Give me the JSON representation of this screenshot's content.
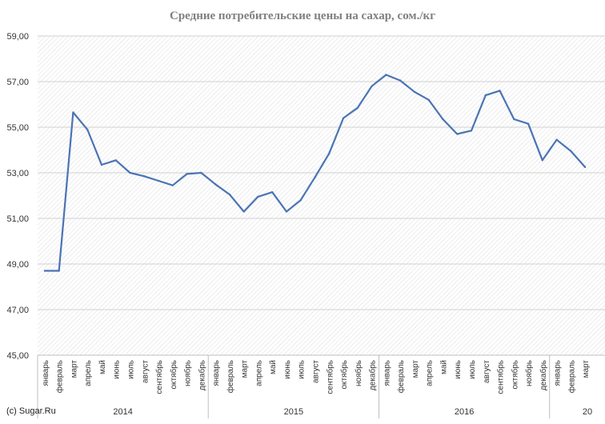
{
  "chart_data": {
    "type": "line",
    "title": "Средние потребительские цены на сахар, сом./кг",
    "ylim": [
      45,
      59
    ],
    "y_ticks": [
      "45,00",
      "47,00",
      "49,00",
      "51,00",
      "53,00",
      "55,00",
      "57,00",
      "59,00"
    ],
    "grid": true,
    "legend": "none",
    "line_color": "#4a74b4",
    "categories": [
      "январь",
      "февраль",
      "март",
      "апрель",
      "май",
      "июнь",
      "июль",
      "август",
      "сентябрь",
      "октябрь",
      "ноябрь",
      "декабрь",
      "январь",
      "февраль",
      "март",
      "апрель",
      "май",
      "июнь",
      "июль",
      "август",
      "сентябрь",
      "октябрь",
      "ноябрь",
      "декабрь",
      "январь",
      "февраль",
      "март",
      "апрель",
      "май",
      "июнь",
      "июль",
      "август",
      "сентябрь",
      "октябрь",
      "ноябрь",
      "декабрь",
      "январь",
      "февраль",
      "март"
    ],
    "year_groups": [
      {
        "label": "2014",
        "months": 12
      },
      {
        "label": "2015",
        "months": 12
      },
      {
        "label": "2016",
        "months": 12
      },
      {
        "label": "20",
        "months": 3
      }
    ],
    "values": [
      48.7,
      48.7,
      55.65,
      54.9,
      53.35,
      53.55,
      53.0,
      52.85,
      52.65,
      52.45,
      52.95,
      53.0,
      52.5,
      52.05,
      51.3,
      51.95,
      52.15,
      51.3,
      51.8,
      52.8,
      53.85,
      55.4,
      55.85,
      56.8,
      57.3,
      57.05,
      56.55,
      56.2,
      55.35,
      54.7,
      54.85,
      56.4,
      56.6,
      55.35,
      55.15,
      53.55,
      54.45,
      53.95,
      53.25
    ]
  },
  "footer": {
    "copyright": "(c) Sugar.Ru"
  }
}
